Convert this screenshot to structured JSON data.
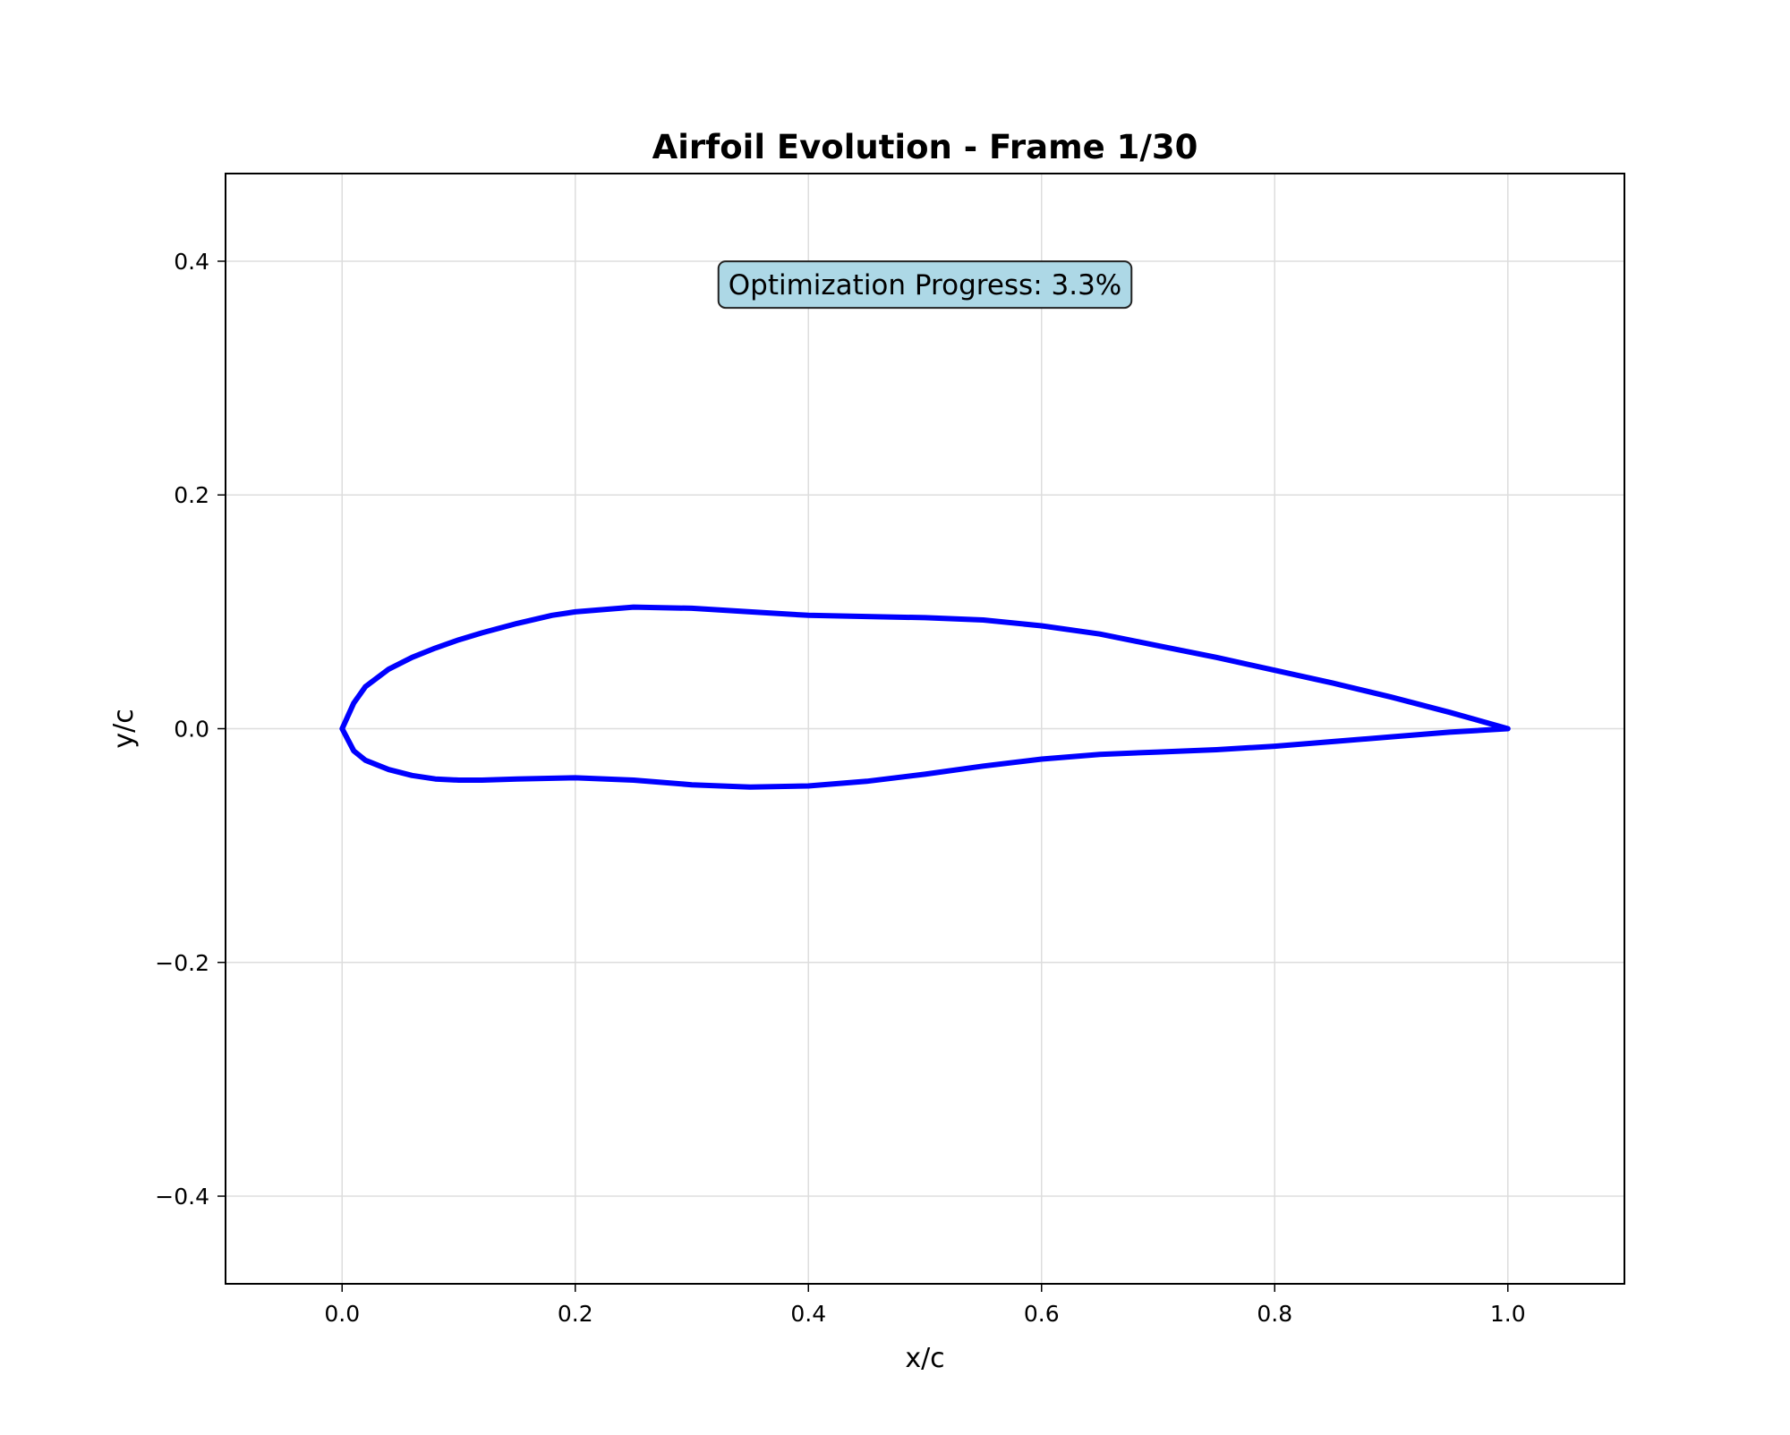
{
  "chart_data": {
    "type": "line",
    "title": "Airfoil Evolution - Frame 1/30",
    "xlabel": "x/c",
    "ylabel": "y/c",
    "xlim": [
      -0.1,
      1.1
    ],
    "ylim": [
      -0.475,
      0.475
    ],
    "xticks": [
      0.0,
      0.2,
      0.4,
      0.6,
      0.8,
      1.0
    ],
    "xtick_labels": [
      "0.0",
      "0.2",
      "0.4",
      "0.6",
      "0.8",
      "1.0"
    ],
    "yticks": [
      -0.4,
      -0.2,
      0.0,
      0.2,
      0.4
    ],
    "ytick_labels": [
      "−0.4",
      "−0.2",
      "0.0",
      "0.2",
      "0.4"
    ],
    "grid": true,
    "annotation": "Optimization Progress: 3.3%",
    "series": [
      {
        "color": "#0000ff",
        "x": [
          1.0,
          0.95,
          0.9,
          0.85,
          0.8,
          0.75,
          0.7,
          0.65,
          0.6,
          0.55,
          0.5,
          0.45,
          0.4,
          0.35,
          0.3,
          0.25,
          0.2,
          0.18,
          0.15,
          0.12,
          0.1,
          0.08,
          0.06,
          0.04,
          0.02,
          0.01,
          0.0,
          0.01,
          0.02,
          0.04,
          0.06,
          0.08,
          0.1,
          0.12,
          0.15,
          0.2,
          0.25,
          0.3,
          0.35,
          0.4,
          0.45,
          0.5,
          0.55,
          0.6,
          0.65,
          0.7,
          0.75,
          0.8,
          0.85,
          0.9,
          0.95,
          1.0
        ],
        "y": [
          0.0,
          0.014,
          0.027,
          0.039,
          0.05,
          0.061,
          0.071,
          0.081,
          0.088,
          0.093,
          0.095,
          0.096,
          0.097,
          0.1,
          0.103,
          0.104,
          0.1,
          0.097,
          0.09,
          0.082,
          0.076,
          0.069,
          0.061,
          0.051,
          0.036,
          0.022,
          0.0,
          -0.019,
          -0.027,
          -0.035,
          -0.04,
          -0.043,
          -0.044,
          -0.044,
          -0.043,
          -0.042,
          -0.044,
          -0.048,
          -0.05,
          -0.049,
          -0.045,
          -0.039,
          -0.032,
          -0.026,
          -0.022,
          -0.02,
          -0.018,
          -0.015,
          -0.011,
          -0.007,
          -0.003,
          0.0
        ]
      }
    ]
  }
}
